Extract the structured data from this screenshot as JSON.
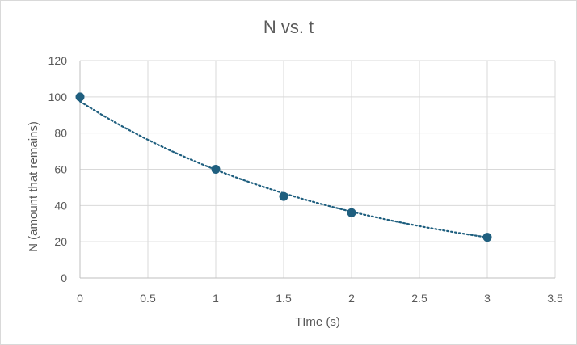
{
  "chart_data": {
    "type": "scatter",
    "title": "N vs. t",
    "xlabel": "TIme (s)",
    "ylabel": "N (amount that remains)",
    "xlim": [
      0,
      3.5
    ],
    "ylim": [
      0,
      120
    ],
    "x_ticks": [
      "0",
      "0.5",
      "1",
      "1.5",
      "2",
      "2.5",
      "3",
      "3.5"
    ],
    "y_ticks": [
      "0",
      "20",
      "40",
      "60",
      "80",
      "100",
      "120"
    ],
    "grid": true,
    "legend": "none",
    "series": [
      {
        "x": [
          0,
          1,
          1.5,
          2,
          3
        ],
        "y": [
          100,
          60,
          45,
          36,
          22.5
        ],
        "marker_color": "#1f5f7f"
      }
    ],
    "trendline": {
      "type": "exponential",
      "a": 97.5,
      "b": -0.49,
      "style": "dotted",
      "color": "#1f5f7f"
    }
  }
}
